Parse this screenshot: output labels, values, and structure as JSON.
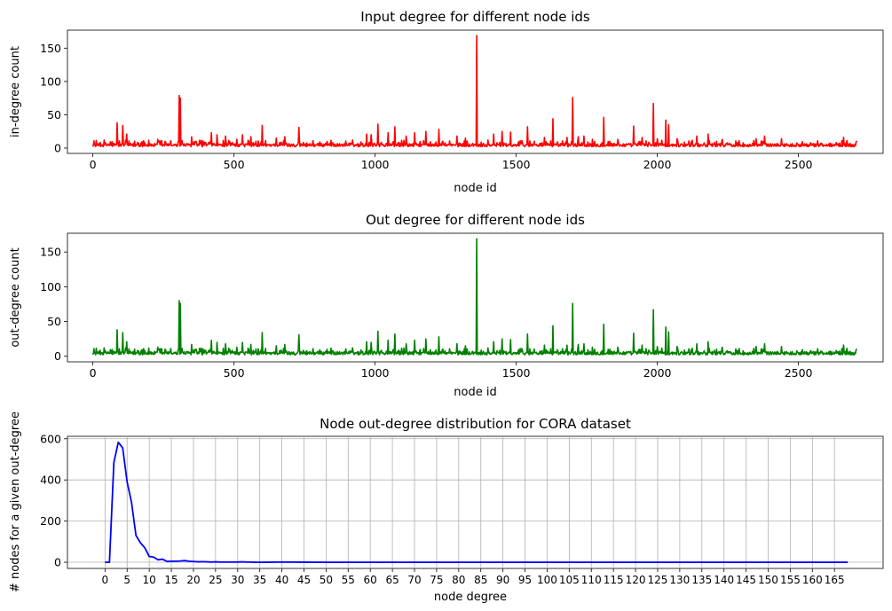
{
  "chart_data": [
    {
      "type": "line",
      "title": "Input degree for different node ids",
      "xlabel": "node id",
      "ylabel": "in-degree count",
      "xlim": [
        -90,
        2800
      ],
      "ylim": [
        -8,
        177
      ],
      "xticks": [
        0,
        500,
        1000,
        1500,
        2000,
        2500
      ],
      "yticks": [
        0,
        50,
        100,
        150
      ],
      "grid": false,
      "color": "#ff0000",
      "baseline_range": [
        2,
        9
      ],
      "spikes": [
        [
          40,
          12
        ],
        [
          85,
          38
        ],
        [
          105,
          34
        ],
        [
          120,
          21
        ],
        [
          180,
          11
        ],
        [
          230,
          13
        ],
        [
          305,
          79
        ],
        [
          310,
          75
        ],
        [
          350,
          17
        ],
        [
          420,
          23
        ],
        [
          440,
          20
        ],
        [
          470,
          18
        ],
        [
          510,
          13
        ],
        [
          530,
          20
        ],
        [
          560,
          17
        ],
        [
          600,
          34
        ],
        [
          650,
          15
        ],
        [
          680,
          17
        ],
        [
          730,
          31
        ],
        [
          780,
          11
        ],
        [
          830,
          10
        ],
        [
          920,
          12
        ],
        [
          970,
          21
        ],
        [
          985,
          20
        ],
        [
          1010,
          36
        ],
        [
          1045,
          23
        ],
        [
          1070,
          32
        ],
        [
          1110,
          18
        ],
        [
          1140,
          23
        ],
        [
          1180,
          25
        ],
        [
          1225,
          28
        ],
        [
          1290,
          18
        ],
        [
          1320,
          15
        ],
        [
          1360,
          169
        ],
        [
          1400,
          12
        ],
        [
          1420,
          21
        ],
        [
          1450,
          25
        ],
        [
          1480,
          24
        ],
        [
          1540,
          32
        ],
        [
          1600,
          16
        ],
        [
          1630,
          44
        ],
        [
          1680,
          16
        ],
        [
          1700,
          76
        ],
        [
          1720,
          17
        ],
        [
          1740,
          18
        ],
        [
          1770,
          13
        ],
        [
          1810,
          46
        ],
        [
          1860,
          13
        ],
        [
          1915,
          33
        ],
        [
          1945,
          16
        ],
        [
          1985,
          67
        ],
        [
          2000,
          14
        ],
        [
          2030,
          42
        ],
        [
          2040,
          35
        ],
        [
          2070,
          14
        ],
        [
          2140,
          18
        ],
        [
          2180,
          21
        ],
        [
          2230,
          13
        ],
        [
          2290,
          11
        ],
        [
          2350,
          14
        ],
        [
          2380,
          18
        ],
        [
          2440,
          14
        ],
        [
          2660,
          16
        ]
      ]
    },
    {
      "type": "line",
      "title": "Out degree for different node ids",
      "xlabel": "node id",
      "ylabel": "out-degree count",
      "xlim": [
        -90,
        2800
      ],
      "ylim": [
        -8,
        177
      ],
      "xticks": [
        0,
        500,
        1000,
        1500,
        2000,
        2500
      ],
      "yticks": [
        0,
        50,
        100,
        150
      ],
      "grid": false,
      "color": "#008000",
      "baseline_range": [
        2,
        9
      ],
      "spikes": [
        [
          40,
          12
        ],
        [
          85,
          38
        ],
        [
          105,
          34
        ],
        [
          120,
          21
        ],
        [
          180,
          11
        ],
        [
          230,
          13
        ],
        [
          305,
          80
        ],
        [
          310,
          76
        ],
        [
          350,
          17
        ],
        [
          420,
          23
        ],
        [
          440,
          20
        ],
        [
          470,
          18
        ],
        [
          510,
          13
        ],
        [
          530,
          20
        ],
        [
          560,
          17
        ],
        [
          600,
          34
        ],
        [
          650,
          15
        ],
        [
          680,
          17
        ],
        [
          730,
          31
        ],
        [
          780,
          11
        ],
        [
          830,
          10
        ],
        [
          920,
          12
        ],
        [
          970,
          21
        ],
        [
          985,
          20
        ],
        [
          1010,
          36
        ],
        [
          1045,
          23
        ],
        [
          1070,
          32
        ],
        [
          1110,
          18
        ],
        [
          1140,
          23
        ],
        [
          1180,
          25
        ],
        [
          1225,
          28
        ],
        [
          1290,
          18
        ],
        [
          1320,
          15
        ],
        [
          1360,
          169
        ],
        [
          1400,
          12
        ],
        [
          1420,
          21
        ],
        [
          1450,
          25
        ],
        [
          1480,
          24
        ],
        [
          1540,
          32
        ],
        [
          1600,
          16
        ],
        [
          1630,
          44
        ],
        [
          1680,
          16
        ],
        [
          1700,
          76
        ],
        [
          1720,
          17
        ],
        [
          1740,
          18
        ],
        [
          1770,
          13
        ],
        [
          1810,
          46
        ],
        [
          1860,
          13
        ],
        [
          1915,
          33
        ],
        [
          1945,
          16
        ],
        [
          1985,
          67
        ],
        [
          2000,
          14
        ],
        [
          2030,
          42
        ],
        [
          2040,
          35
        ],
        [
          2070,
          14
        ],
        [
          2140,
          18
        ],
        [
          2180,
          21
        ],
        [
          2230,
          13
        ],
        [
          2290,
          11
        ],
        [
          2350,
          14
        ],
        [
          2380,
          18
        ],
        [
          2440,
          14
        ],
        [
          2660,
          16
        ]
      ]
    },
    {
      "type": "line",
      "title": "Node out-degree distribution for CORA dataset",
      "xlabel": "node degree",
      "ylabel": "# nodes for a given out-degree",
      "xlim": [
        -8.5,
        176
      ],
      "ylim": [
        -30,
        612
      ],
      "xticks": [
        0,
        5,
        10,
        15,
        20,
        25,
        30,
        35,
        40,
        45,
        50,
        55,
        60,
        65,
        70,
        75,
        80,
        85,
        90,
        95,
        100,
        105,
        110,
        115,
        120,
        125,
        130,
        135,
        140,
        145,
        150,
        155,
        160,
        165
      ],
      "yticks": [
        0,
        200,
        400,
        600
      ],
      "grid": true,
      "color": "#0000ff",
      "x": [
        0,
        1,
        2,
        3,
        4,
        5,
        6,
        7,
        8,
        9,
        10,
        11,
        12,
        13,
        14,
        15,
        16,
        17,
        18,
        19,
        20,
        21,
        22,
        23,
        24,
        25,
        26,
        27,
        28,
        29,
        30,
        31,
        32,
        33,
        34,
        35,
        40,
        50,
        60,
        70,
        80,
        90,
        100,
        120,
        140,
        160,
        168
      ],
      "y": [
        0,
        0,
        485,
        583,
        555,
        390,
        290,
        130,
        95,
        70,
        28,
        25,
        12,
        15,
        4,
        5,
        5,
        6,
        8,
        5,
        4,
        2,
        3,
        2,
        1,
        2,
        1,
        1,
        1,
        1,
        1,
        2,
        1,
        1,
        0,
        0,
        1,
        0,
        0,
        0,
        0,
        0,
        0,
        0,
        0,
        0,
        0
      ]
    }
  ]
}
